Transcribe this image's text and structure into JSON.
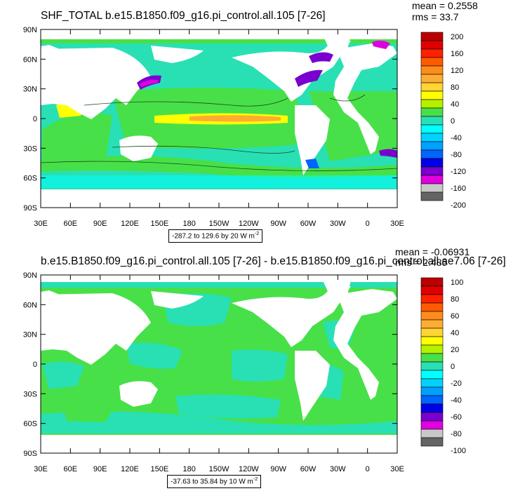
{
  "panels": [
    {
      "id": "top",
      "title": "SHF_TOTAL b.e15.B1850.f09_g16.pi_control.all.105 [7-26]",
      "mean_text": "mean = 0.2558",
      "rms_text": "rms = 33.7",
      "lat_labels": [
        "90N",
        "60N",
        "30N",
        "0",
        "30S",
        "60S",
        "90S"
      ],
      "lon_labels": [
        "30E",
        "60E",
        "90E",
        "120E",
        "150E",
        "180",
        "150W",
        "120W",
        "90W",
        "60W",
        "30W",
        "0",
        "30E"
      ],
      "range": {
        "text": "-287.2 to 129.6 by 20",
        "unit": "W m",
        "exp": "-2"
      },
      "colorbar": {
        "labels": [
          "200",
          "160",
          "120",
          "80",
          "40",
          "0",
          "-40",
          "-80",
          "-120",
          "-160",
          "-200"
        ],
        "colors": [
          "#bb0000",
          "#e00000",
          "#ff2000",
          "#ff5a00",
          "#ff8c1a",
          "#ffac33",
          "#ffd433",
          "#ffff00",
          "#b4f000",
          "#48e048",
          "#28e0b4",
          "#00ffff",
          "#00d2ff",
          "#00a0ff",
          "#0064ff",
          "#0000e8",
          "#7a00d0",
          "#e000e0",
          "#c8c8c8",
          "#646464"
        ]
      }
    },
    {
      "id": "bottom",
      "title": "b.e15.B1850.f09_g16.pi_control.all.105 [7-26] - b.e15.B1850.f09_g16.pi_control.all.ae7.06 [7-26]",
      "mean_text": "mean = -0.06931",
      "rms_text": "rms = 2.485",
      "lat_labels": [
        "90N",
        "60N",
        "30N",
        "0",
        "30S",
        "60S",
        "90S"
      ],
      "lon_labels": [
        "30E",
        "60E",
        "90E",
        "120E",
        "150E",
        "180",
        "150W",
        "120W",
        "90W",
        "60W",
        "30W",
        "0",
        "30E"
      ],
      "range": {
        "text": "-37.63 to 35.84 by 10",
        "unit": "W m",
        "exp": "-2"
      },
      "colorbar": {
        "labels": [
          "100",
          "80",
          "60",
          "40",
          "20",
          "0",
          "-20",
          "-40",
          "-60",
          "-80",
          "-100"
        ],
        "colors": [
          "#bb0000",
          "#e00000",
          "#ff2000",
          "#ff5a00",
          "#ff8c1a",
          "#ffac33",
          "#ffd433",
          "#ffff00",
          "#b4f000",
          "#48e048",
          "#28e0b4",
          "#00ffff",
          "#00d2ff",
          "#00a0ff",
          "#0064ff",
          "#0000e8",
          "#7a00d0",
          "#e000e0",
          "#c8c8c8",
          "#646464"
        ]
      }
    }
  ],
  "colors": {
    "ocean_green": "#48e048",
    "ocean_cyan": "#28e0b4",
    "ocean_light_cyan": "#00ffff",
    "land": "#ffffff",
    "warm_yellow": "#ffff00",
    "warm_orange": "#ffac33",
    "cold_blue": "#0064ff",
    "cold_purple": "#7a00d0",
    "cold_magenta": "#e000e0",
    "contour": "#1a4a1a",
    "frame": "#000000"
  }
}
